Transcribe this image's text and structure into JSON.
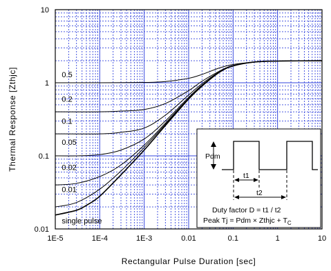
{
  "chart_data": {
    "type": "line",
    "x_scale": "log",
    "y_scale": "log",
    "xlim": [
      1e-05,
      10
    ],
    "ylim": [
      0.01,
      10
    ],
    "grid": true,
    "xlabel": "Rectangular Pulse Duration [sec]",
    "ylabel": "Thermal Response [Zthjc]",
    "x_ticks": [
      "1E-5",
      "1E-4",
      "1E-3",
      "0.01",
      "0.1",
      "1",
      "10"
    ],
    "y_ticks": [
      "0.01",
      "0.1",
      "1",
      "10"
    ],
    "colors": {
      "grid": "#3344dd",
      "curve": "#000000",
      "frame": "#000000"
    },
    "series": [
      {
        "name": "0.5",
        "label_at": [
          1.4e-05,
          1.3
        ],
        "points": [
          [
            1e-05,
            1.0
          ],
          [
            0.0001,
            1.0
          ],
          [
            0.001,
            1.01
          ],
          [
            0.003,
            1.04
          ],
          [
            0.01,
            1.15
          ],
          [
            0.02,
            1.3
          ],
          [
            0.05,
            1.6
          ],
          [
            0.1,
            1.78
          ],
          [
            0.3,
            1.92
          ],
          [
            1,
            1.98
          ],
          [
            10,
            2.0
          ]
        ]
      },
      {
        "name": "0.2",
        "label_at": [
          1.4e-05,
          0.6
        ],
        "points": [
          [
            1e-05,
            0.4
          ],
          [
            0.0001,
            0.4
          ],
          [
            0.0003,
            0.41
          ],
          [
            0.001,
            0.43
          ],
          [
            0.003,
            0.52
          ],
          [
            0.01,
            0.78
          ],
          [
            0.02,
            1.05
          ],
          [
            0.05,
            1.45
          ],
          [
            0.1,
            1.72
          ],
          [
            0.3,
            1.92
          ],
          [
            1,
            1.98
          ],
          [
            10,
            2.0
          ]
        ]
      },
      {
        "name": "0.1",
        "label_at": [
          1.4e-05,
          0.3
        ],
        "points": [
          [
            1e-05,
            0.2
          ],
          [
            0.0001,
            0.2
          ],
          [
            0.0003,
            0.21
          ],
          [
            0.001,
            0.24
          ],
          [
            0.003,
            0.36
          ],
          [
            0.01,
            0.68
          ],
          [
            0.02,
            0.97
          ],
          [
            0.05,
            1.42
          ],
          [
            0.1,
            1.7
          ],
          [
            0.3,
            1.92
          ],
          [
            1,
            1.98
          ],
          [
            10,
            2.0
          ]
        ]
      },
      {
        "name": "0.05",
        "label_at": [
          1.4e-05,
          0.155
        ],
        "points": [
          [
            1e-05,
            0.1
          ],
          [
            3e-05,
            0.1
          ],
          [
            0.0001,
            0.104
          ],
          [
            0.0003,
            0.12
          ],
          [
            0.001,
            0.17
          ],
          [
            0.003,
            0.3
          ],
          [
            0.01,
            0.63
          ],
          [
            0.02,
            0.93
          ],
          [
            0.05,
            1.4
          ],
          [
            0.1,
            1.7
          ],
          [
            0.3,
            1.92
          ],
          [
            1,
            1.98
          ],
          [
            10,
            2.0
          ]
        ]
      },
      {
        "name": "0.02",
        "label_at": [
          1.4e-05,
          0.07
        ],
        "points": [
          [
            1e-05,
            0.04
          ],
          [
            3e-05,
            0.042
          ],
          [
            0.0001,
            0.052
          ],
          [
            0.0003,
            0.075
          ],
          [
            0.001,
            0.14
          ],
          [
            0.003,
            0.28
          ],
          [
            0.01,
            0.61
          ],
          [
            0.02,
            0.92
          ],
          [
            0.05,
            1.4
          ],
          [
            0.1,
            1.7
          ],
          [
            0.3,
            1.92
          ],
          [
            1,
            1.98
          ],
          [
            10,
            2.0
          ]
        ]
      },
      {
        "name": "0.01",
        "label_at": [
          1.4e-05,
          0.035
        ],
        "points": [
          [
            1e-05,
            0.02
          ],
          [
            3e-05,
            0.023
          ],
          [
            0.0001,
            0.035
          ],
          [
            0.0003,
            0.062
          ],
          [
            0.001,
            0.13
          ],
          [
            0.003,
            0.27
          ],
          [
            0.01,
            0.6
          ],
          [
            0.02,
            0.91
          ],
          [
            0.05,
            1.4
          ],
          [
            0.1,
            1.7
          ],
          [
            0.3,
            1.92
          ],
          [
            1,
            1.98
          ],
          [
            10,
            2.0
          ]
        ]
      },
      {
        "name": "single pulse",
        "label_at": [
          1.4e-05,
          0.013
        ],
        "points": [
          [
            1e-05,
            0.0155
          ],
          [
            3e-05,
            0.018
          ],
          [
            5e-05,
            0.021
          ],
          [
            0.0001,
            0.028
          ],
          [
            0.0003,
            0.055
          ],
          [
            0.001,
            0.12
          ],
          [
            0.003,
            0.26
          ],
          [
            0.01,
            0.6
          ],
          [
            0.02,
            0.9
          ],
          [
            0.05,
            1.4
          ],
          [
            0.1,
            1.7
          ],
          [
            0.3,
            1.92
          ],
          [
            1,
            1.98
          ],
          [
            10,
            2.0
          ]
        ]
      }
    ],
    "inset": {
      "pdm_label": "Pdm",
      "t1_label": "t1",
      "t2_label": "t2",
      "duty_factor": "Duty factor D = t1 / t2",
      "peak_formula": "Peak Tj = Pdm × Zthjc + T",
      "peak_subscript": "C"
    }
  }
}
